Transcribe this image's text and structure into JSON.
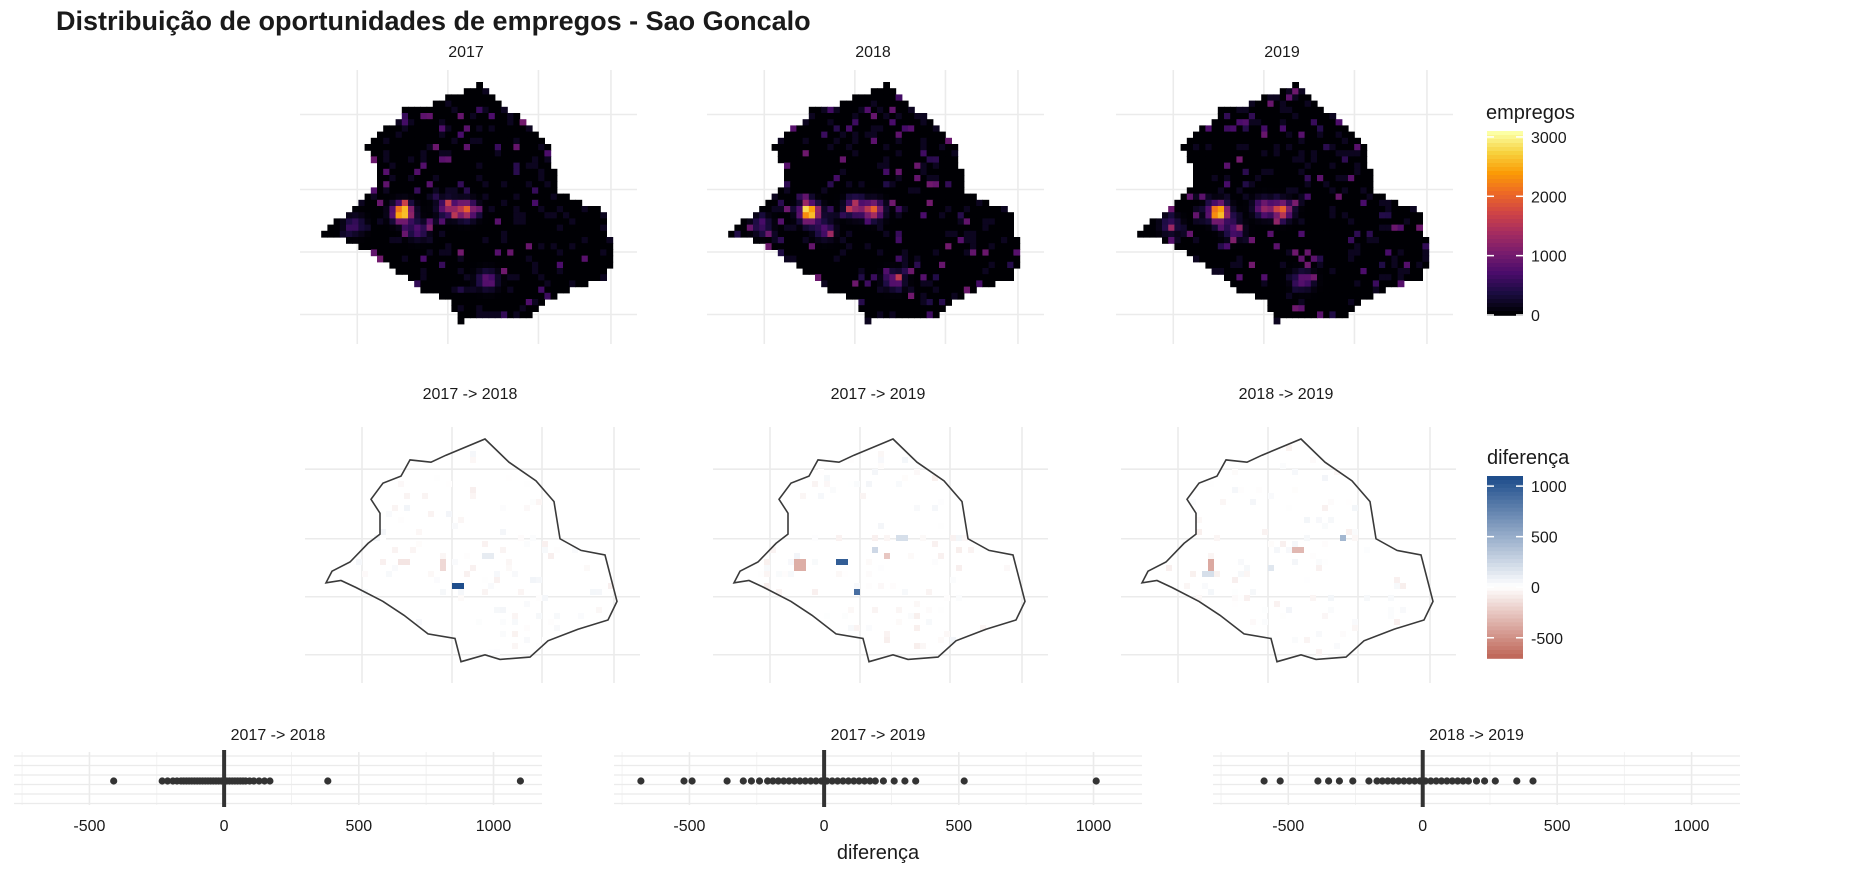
{
  "title": "Distribuição de oportunidades de empregos - Sao Goncalo",
  "colors": {
    "inferno": [
      "#000004",
      "#1b0c41",
      "#4a0c6b",
      "#781c6d",
      "#a52c60",
      "#cf4446",
      "#ed6925",
      "#fb9b06",
      "#f7d13d",
      "#fcffa4"
    ],
    "diverging_low": "#c0695b",
    "diverging_mid": "#ffffff",
    "diverging_high": "#1f4e8c",
    "point": "#333333",
    "grid": "#ebebeb"
  },
  "chart_data": [
    {
      "type": "heatmap",
      "description": "hexagonal grid map of job counts, one panel per year",
      "panels": [
        "2017",
        "2018",
        "2019"
      ],
      "legend": {
        "title": "empregos",
        "ticks": [
          0,
          1000,
          2000,
          3000
        ],
        "range": [
          0,
          3100
        ],
        "palette": "inferno"
      },
      "hotspots": [
        3000,
        2000,
        1200,
        800
      ]
    },
    {
      "type": "heatmap",
      "description": "hexagonal grid map of difference in job counts between years",
      "panels": [
        "2017 -> 2018",
        "2017 -> 2019",
        "2018 -> 2019"
      ],
      "legend": {
        "title": "diferença",
        "ticks": [
          -500,
          0,
          500,
          1000
        ],
        "range": [
          -700,
          1100
        ],
        "palette": "diverging"
      }
    },
    {
      "type": "scatter",
      "description": "strip plots of difference values",
      "xlabel": "diferença",
      "xlim": [
        -780,
        1180
      ],
      "xticks": [
        -500,
        0,
        500,
        1000
      ],
      "panels": [
        {
          "name": "2017 -> 2018",
          "values": [
            -410,
            -230,
            -210,
            -190,
            -175,
            -160,
            -150,
            -140,
            -130,
            -120,
            -110,
            -100,
            -90,
            -80,
            -70,
            -60,
            -50,
            -40,
            -30,
            -20,
            -10,
            0,
            10,
            20,
            30,
            40,
            50,
            60,
            70,
            80,
            95,
            110,
            130,
            150,
            170,
            385,
            1100
          ]
        },
        {
          "name": "2017 -> 2019",
          "values": [
            -680,
            -520,
            -490,
            -360,
            -300,
            -270,
            -240,
            -210,
            -190,
            -170,
            -150,
            -130,
            -110,
            -90,
            -70,
            -50,
            -30,
            -10,
            0,
            10,
            30,
            50,
            70,
            90,
            110,
            130,
            150,
            170,
            190,
            220,
            260,
            300,
            340,
            520,
            1010
          ]
        },
        {
          "name": "2018 -> 2019",
          "values": [
            -590,
            -530,
            -390,
            -350,
            -310,
            -260,
            -200,
            -170,
            -150,
            -130,
            -110,
            -90,
            -70,
            -50,
            -30,
            -10,
            0,
            10,
            30,
            50,
            70,
            90,
            110,
            130,
            150,
            170,
            200,
            230,
            270,
            350,
            410
          ]
        }
      ]
    }
  ]
}
